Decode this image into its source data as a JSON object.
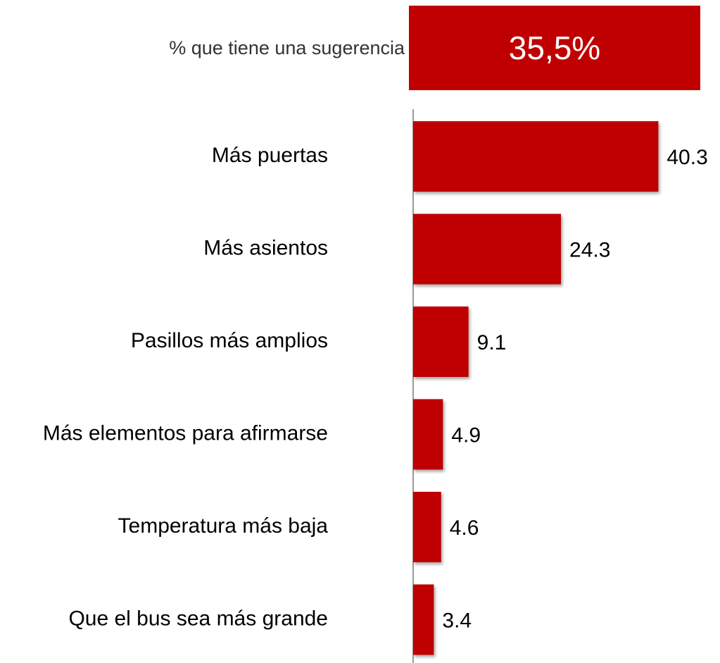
{
  "chart_data": {
    "type": "bar",
    "orientation": "horizontal",
    "annotations": [
      {
        "text": "% que tiene una sugerencia"
      },
      {
        "text": "35,5%"
      }
    ],
    "categories": [
      "Más puertas",
      "Más asientos",
      "Pasillos más amplios",
      "Más elementos para afirmarse",
      "Temperatura más baja",
      "Que el bus sea más grande"
    ],
    "values": [
      40.3,
      24.3,
      9.1,
      4.9,
      4.6,
      3.4
    ],
    "color": "#c00000",
    "xlim": [
      0,
      45
    ]
  }
}
